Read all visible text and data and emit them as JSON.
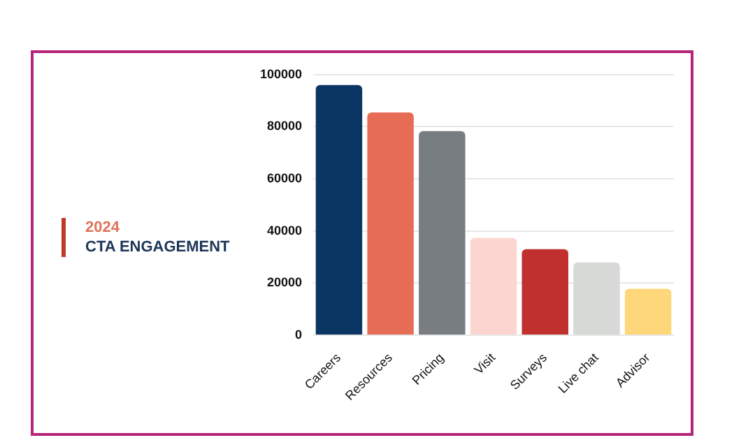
{
  "chart_data": {
    "type": "bar",
    "title": "2024",
    "subtitle": "CTA ENGAGEMENT",
    "categories": [
      "Careers",
      "Resources",
      "Pricing",
      "Visit",
      "Surveys",
      "Live chat",
      "Advisor"
    ],
    "values": [
      96000,
      85500,
      78300,
      37300,
      33000,
      27900,
      17800
    ],
    "colors": [
      "#0b3563",
      "#e66c55",
      "#787d82",
      "#fdd5d0",
      "#c0302e",
      "#d7d9d7",
      "#fdd77a"
    ],
    "ylim": [
      0,
      100000
    ],
    "yticks": [
      0,
      20000,
      40000,
      60000,
      80000,
      100000
    ],
    "grid": "y",
    "legend": false
  }
}
